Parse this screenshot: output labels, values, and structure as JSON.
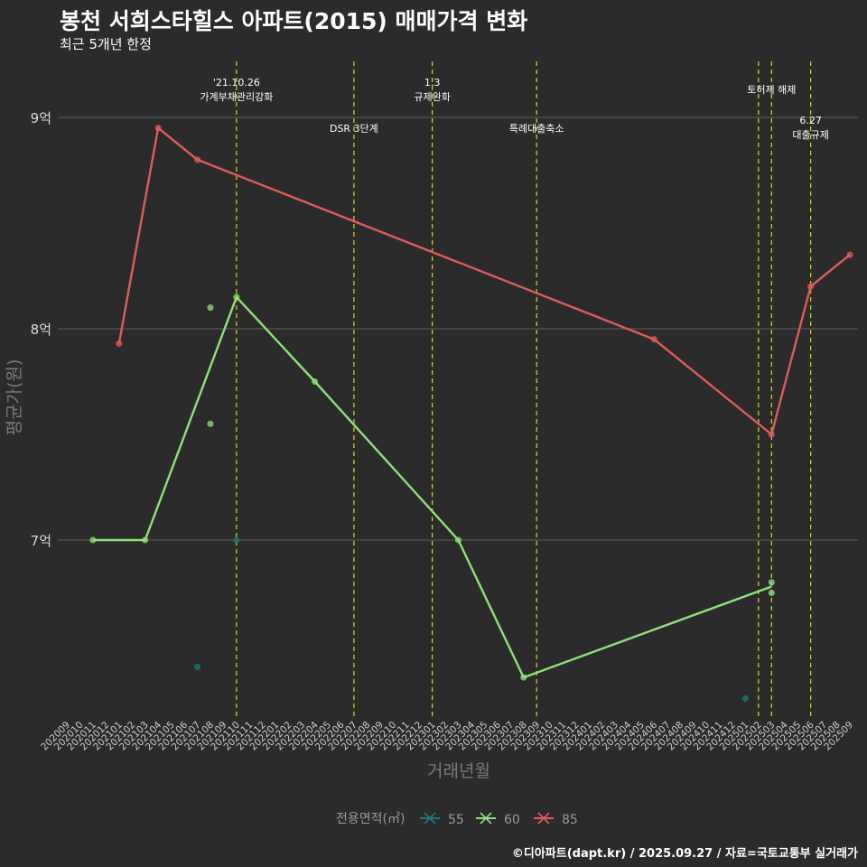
{
  "title": "봉천 서희스타힐스 아파트(2015) 매매가격 변화",
  "subtitle": "최근 5개년 한정",
  "caption": "©디아파트(dapt.kr) / 2025.09.27 / 자료=국토교통부 실거래가",
  "chart_data": {
    "type": "line",
    "xlabel": "거래년월",
    "ylabel": "평균가(원)",
    "x_categories": [
      "202009",
      "202010",
      "202011",
      "202012",
      "202101",
      "202102",
      "202103",
      "202104",
      "202105",
      "202106",
      "202107",
      "202108",
      "202109",
      "202110",
      "202111",
      "202112",
      "202201",
      "202202",
      "202203",
      "202204",
      "202205",
      "202206",
      "202207",
      "202208",
      "202209",
      "202210",
      "202211",
      "202212",
      "202301",
      "202302",
      "202303",
      "202304",
      "202305",
      "202306",
      "202307",
      "202308",
      "202309",
      "202310",
      "202311",
      "202312",
      "202401",
      "202402",
      "202403",
      "202404",
      "202405",
      "202406",
      "202407",
      "202408",
      "202409",
      "202410",
      "202411",
      "202412",
      "202501",
      "202502",
      "202503",
      "202504",
      "202505",
      "202506",
      "202507",
      "202508",
      "202509"
    ],
    "y_ticks": [
      {
        "value": 7.0,
        "label": "7억"
      },
      {
        "value": 8.0,
        "label": "8억"
      },
      {
        "value": 9.0,
        "label": "9억"
      }
    ],
    "ylim": [
      6.2,
      9.3
    ],
    "legend": {
      "title": "전용면적(㎡)",
      "position": "bottom"
    },
    "series": [
      {
        "name": "55",
        "color": "#1f7a7a",
        "line": [],
        "points": [
          {
            "x": "202107",
            "y": 6.4
          },
          {
            "x": "202110",
            "y": 7.0
          },
          {
            "x": "202501",
            "y": 6.25
          }
        ]
      },
      {
        "name": "60",
        "color": "#90e07a",
        "line": [
          {
            "x": "202011",
            "y": 7.0
          },
          {
            "x": "202103",
            "y": 7.0
          },
          {
            "x": "202110",
            "y": 8.15
          },
          {
            "x": "202204",
            "y": 7.75
          },
          {
            "x": "202303",
            "y": 7.0
          },
          {
            "x": "202308",
            "y": 6.35
          },
          {
            "x": "202503",
            "y": 6.78
          }
        ],
        "points": [
          {
            "x": "202011",
            "y": 7.0
          },
          {
            "x": "202103",
            "y": 7.0
          },
          {
            "x": "202108",
            "y": 8.1
          },
          {
            "x": "202108",
            "y": 7.55
          },
          {
            "x": "202110",
            "y": 8.15
          },
          {
            "x": "202204",
            "y": 7.75
          },
          {
            "x": "202303",
            "y": 7.0
          },
          {
            "x": "202308",
            "y": 6.35
          },
          {
            "x": "202503",
            "y": 6.8
          },
          {
            "x": "202503",
            "y": 6.75
          }
        ]
      },
      {
        "name": "85",
        "color": "#e05c5c",
        "line": [
          {
            "x": "202101",
            "y": 7.93
          },
          {
            "x": "202104",
            "y": 8.95
          },
          {
            "x": "202107",
            "y": 8.8
          },
          {
            "x": "202406",
            "y": 7.95
          },
          {
            "x": "202503",
            "y": 7.5
          },
          {
            "x": "202506",
            "y": 8.2
          },
          {
            "x": "202509",
            "y": 8.35
          }
        ],
        "points": [
          {
            "x": "202101",
            "y": 7.93
          },
          {
            "x": "202104",
            "y": 8.95
          },
          {
            "x": "202107",
            "y": 8.8
          },
          {
            "x": "202406",
            "y": 7.95
          },
          {
            "x": "202503",
            "y": 7.5
          },
          {
            "x": "202506",
            "y": 8.2
          },
          {
            "x": "202509",
            "y": 8.35
          }
        ]
      }
    ],
    "events": [
      {
        "x": "202110",
        "label_lines": [
          "'21.10.26",
          "가계부채관리강화"
        ],
        "level": "top"
      },
      {
        "x": "202207",
        "label_lines": [
          "DSR 3단계"
        ],
        "level": "low"
      },
      {
        "x": "202301",
        "label_lines": [
          "1.3",
          "규제완화"
        ],
        "level": "top"
      },
      {
        "x": "202309",
        "label_lines": [
          "특례대출축소"
        ],
        "level": "low"
      },
      {
        "x": "202502",
        "label_lines": [],
        "level": "none"
      },
      {
        "x": "202503",
        "label_lines": [
          "토허제 해제"
        ],
        "level": "mid"
      },
      {
        "x": "202506",
        "label_lines": [
          "6.27",
          "대출규제"
        ],
        "level": "low2"
      }
    ]
  }
}
